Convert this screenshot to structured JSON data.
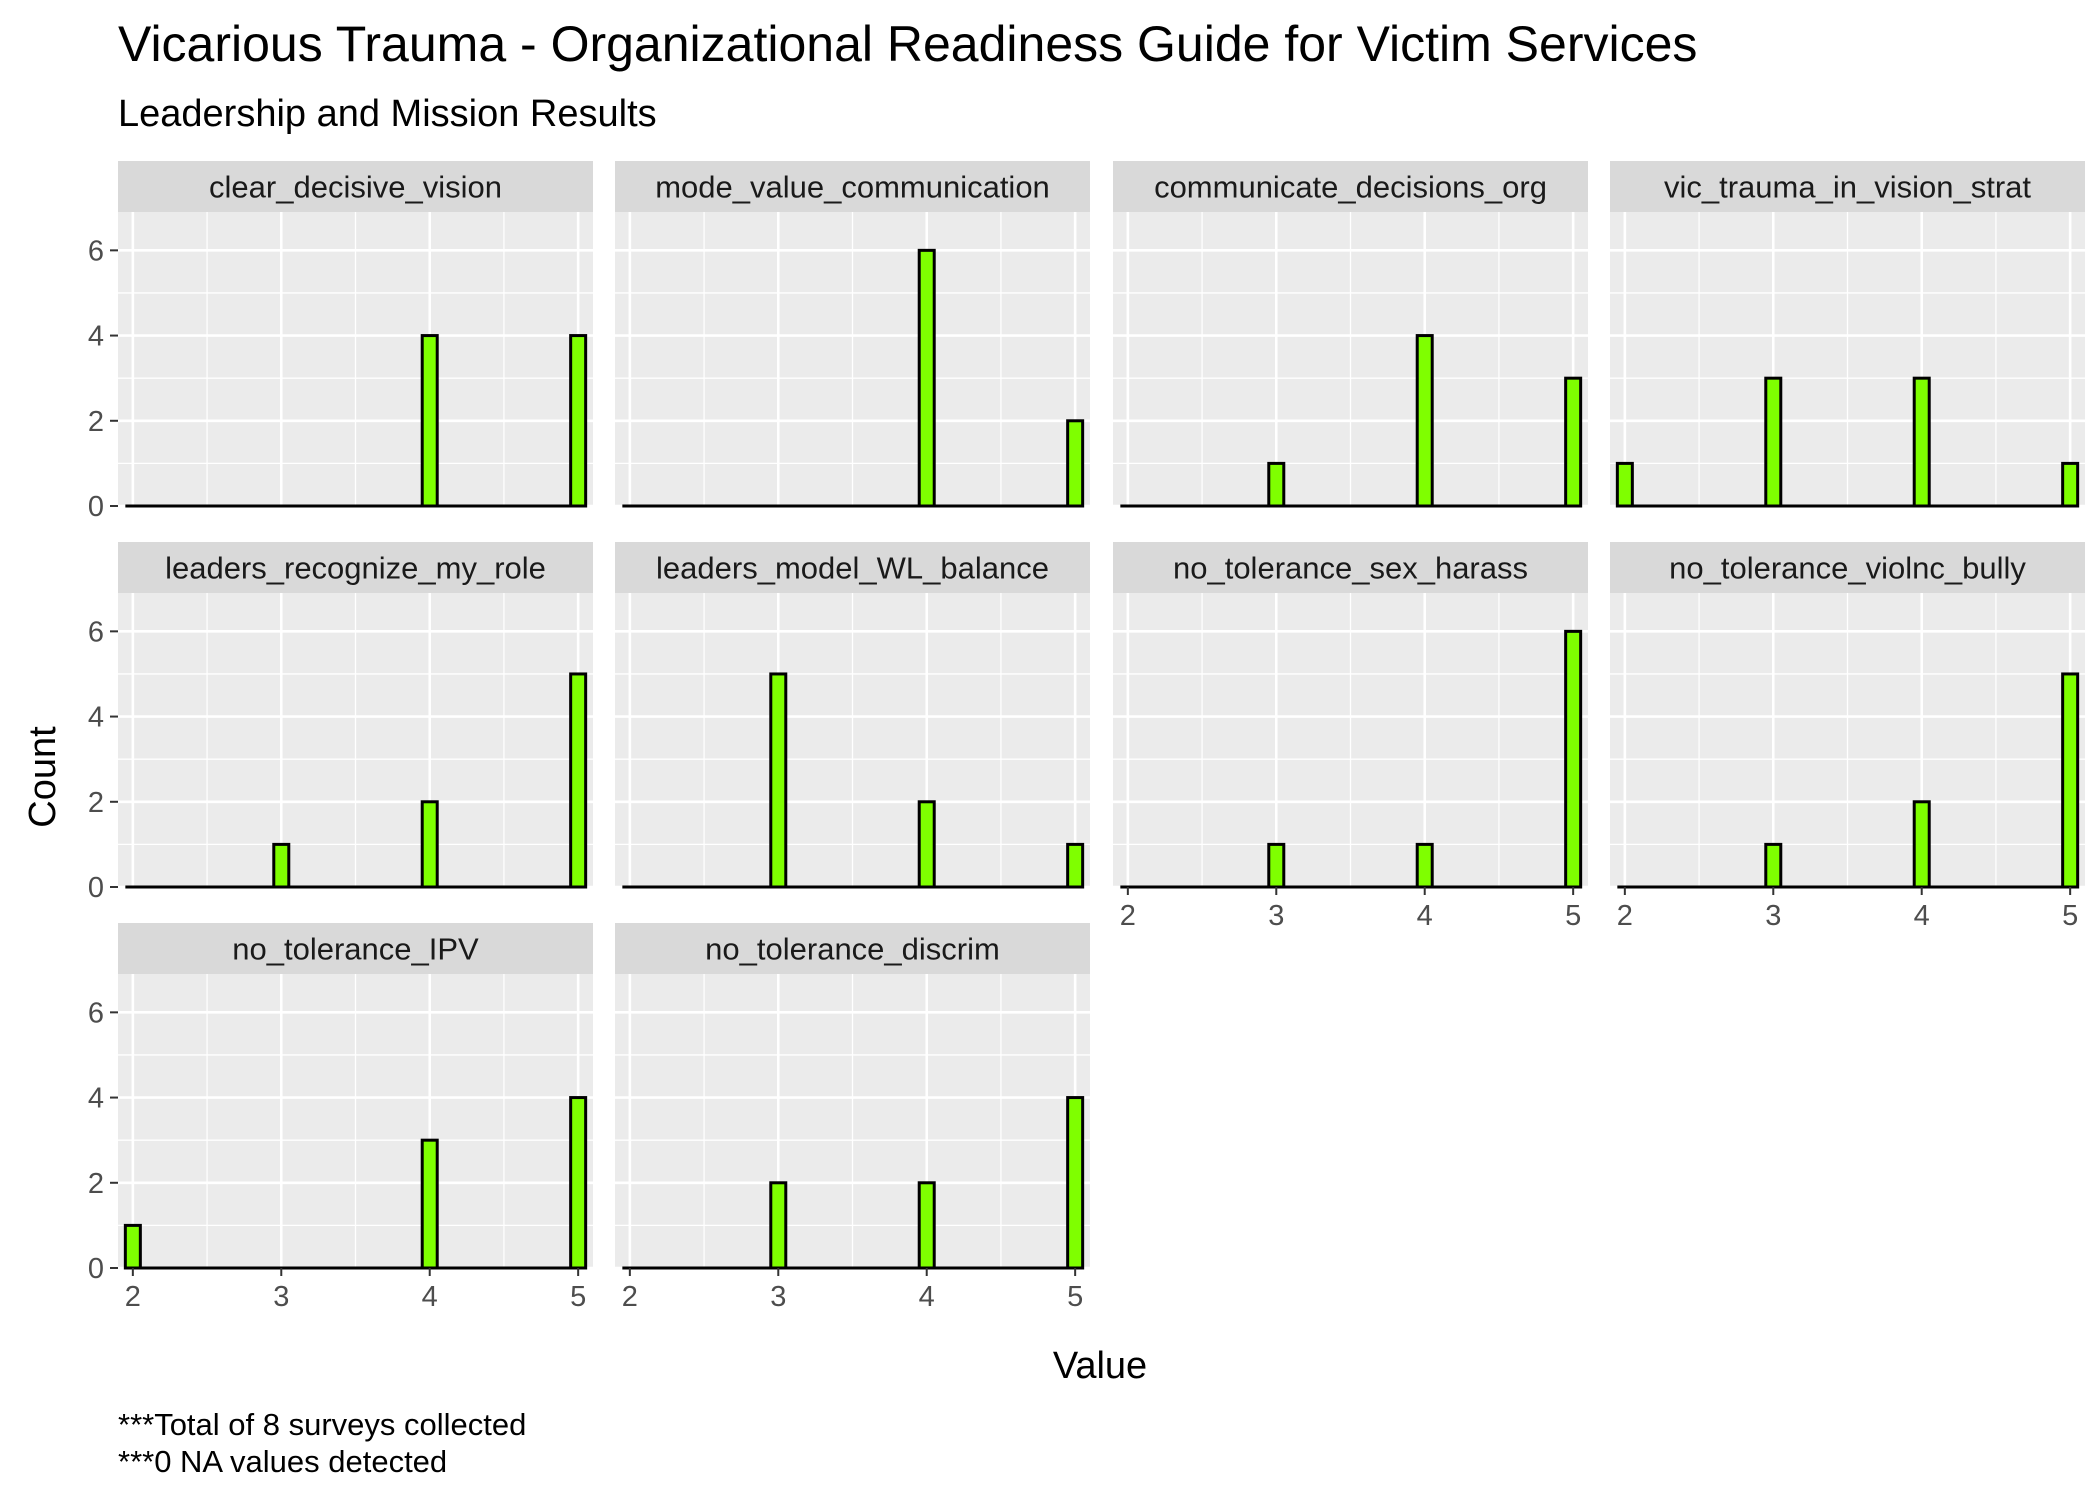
{
  "chart_data": {
    "type": "bar",
    "title": "Vicarious Trauma - Organizational Readiness Guide for Victim Services",
    "subtitle": "Leadership and Mission Results",
    "xlabel": "Value",
    "ylabel": "Count",
    "x_ticks": [
      2,
      3,
      4,
      5
    ],
    "y_ticks": [
      0,
      2,
      4,
      6
    ],
    "xlim": [
      1.9,
      5.1
    ],
    "ylim": [
      0,
      6.9
    ],
    "grid": true,
    "bar_fill": "#7FFF00",
    "bar_stroke": "#000000",
    "panel_background": "#EBEBEB",
    "strip_background": "#D9D9D9",
    "caption": [
      "***Total of 8 surveys collected",
      "***0 NA values detected"
    ],
    "facets": [
      {
        "name": "clear_decisive_vision",
        "x": [
          2,
          3,
          4,
          5
        ],
        "values": [
          0,
          0,
          4,
          4
        ]
      },
      {
        "name": "mode_value_communication",
        "x": [
          2,
          3,
          4,
          5
        ],
        "values": [
          0,
          0,
          6,
          2
        ]
      },
      {
        "name": "communicate_decisions_org",
        "x": [
          2,
          3,
          4,
          5
        ],
        "values": [
          0,
          1,
          4,
          3
        ]
      },
      {
        "name": "vic_trauma_in_vision_strat",
        "x": [
          2,
          3,
          4,
          5
        ],
        "values": [
          1,
          3,
          3,
          1
        ]
      },
      {
        "name": "leaders_recognize_my_role",
        "x": [
          2,
          3,
          4,
          5
        ],
        "values": [
          0,
          1,
          2,
          5
        ]
      },
      {
        "name": "leaders_model_WL_balance",
        "x": [
          2,
          3,
          4,
          5
        ],
        "values": [
          0,
          5,
          2,
          1
        ]
      },
      {
        "name": "no_tolerance_sex_harass",
        "x": [
          2,
          3,
          4,
          5
        ],
        "values": [
          0,
          1,
          1,
          6
        ]
      },
      {
        "name": "no_tolerance_violnc_bully",
        "x": [
          2,
          3,
          4,
          5
        ],
        "values": [
          0,
          1,
          2,
          5
        ]
      },
      {
        "name": "no_tolerance_IPV",
        "x": [
          2,
          3,
          4,
          5
        ],
        "values": [
          1,
          0,
          3,
          4
        ]
      },
      {
        "name": "no_tolerance_discrim",
        "x": [
          2,
          3,
          4,
          5
        ],
        "values": [
          0,
          2,
          2,
          4
        ]
      }
    ]
  }
}
